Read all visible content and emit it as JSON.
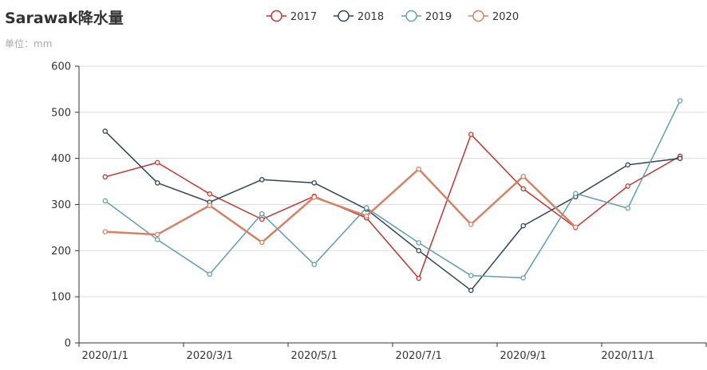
{
  "title": "Sarawak降水量",
  "subtitle": "单位：mm",
  "colors": [
    "#c23531",
    "#2f4554",
    "#61a0a8",
    "#d48265"
  ],
  "chart_data": {
    "type": "line",
    "title": "Sarawak降水量",
    "subtitle": "单位：mm",
    "xlabel": "",
    "ylabel": "",
    "x": [
      "2020/1/1",
      "2020/2/1",
      "2020/3/1",
      "2020/4/1",
      "2020/5/1",
      "2020/6/1",
      "2020/7/1",
      "2020/8/1",
      "2020/9/1",
      "2020/10/1",
      "2020/11/1",
      "2020/12/1"
    ],
    "x_tick_labels": [
      "2020/1/1",
      "2020/3/1",
      "2020/5/1",
      "2020/7/1",
      "2020/9/1",
      "2020/11/1"
    ],
    "ylim": [
      0,
      600
    ],
    "y_ticks": [
      0,
      100,
      200,
      300,
      400,
      500,
      600
    ],
    "grid": "horizontal",
    "legend_position": "top-center",
    "series": [
      {
        "name": "2017",
        "color": "#c23531",
        "values": [
          360,
          391,
          323,
          268,
          318,
          271,
          140,
          452,
          334,
          250,
          340,
          405
        ]
      },
      {
        "name": "2018",
        "color": "#2f4554",
        "values": [
          459,
          347,
          305,
          354,
          347,
          290,
          200,
          114,
          254,
          317,
          386,
          400
        ]
      },
      {
        "name": "2019",
        "color": "#61a0a8",
        "values": [
          308,
          224,
          149,
          280,
          170,
          293,
          217,
          146,
          141,
          324,
          292,
          525
        ]
      },
      {
        "name": "2020",
        "color": "#d48265",
        "values": [
          241,
          235,
          298,
          218,
          316,
          275,
          377,
          257,
          361,
          251,
          null,
          null
        ]
      }
    ]
  }
}
